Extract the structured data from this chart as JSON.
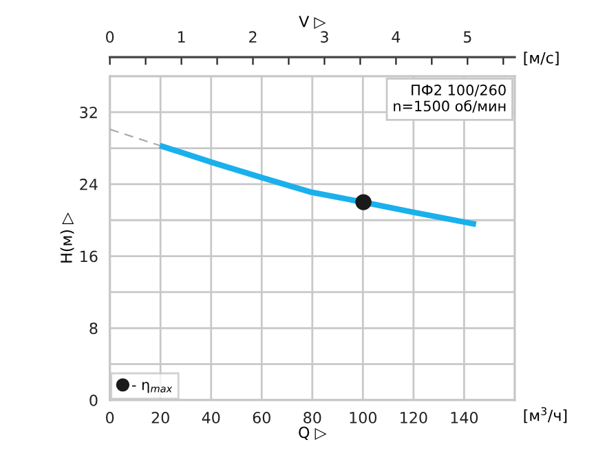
{
  "chart_data": {
    "type": "line",
    "xlabel": "Q ▷",
    "ylabel": "H(м) ▷",
    "x2label": "V ▷",
    "annotations": [
      "ПФ2 100/260\nn=1500 об/мин",
      "[м$^{3}$/ч]",
      "[м/с]"
    ],
    "series": [
      {
        "color": "#aaaaaa",
        "line_style": "dashed",
        "x": [
          0,
          20.8
        ],
        "values": [
          30.1,
          28.2
        ]
      },
      {
        "color": "#1ab0ec",
        "line_style": "solid",
        "x": [
          20.8,
          41.7,
          61.6,
          79.7,
          100.2,
          119.6,
          143.6
        ],
        "values": [
          28.2,
          26.3,
          24.6,
          23.1,
          22.0,
          20.9,
          19.6
        ]
      },
      {
        "type": "scatter",
        "name": "- η$_{max}$",
        "color": "#1a1a1a",
        "marker": "circle",
        "x": [
          100.2
        ],
        "values": [
          22.0
        ]
      }
    ],
    "xlim": [
      0,
      160
    ],
    "xticks": [
      0,
      20,
      40,
      60,
      80,
      100,
      120,
      140
    ],
    "ylim": [
      0,
      36
    ],
    "yticks": [
      0,
      {
        "value": 4,
        "label": null
      },
      8,
      {
        "value": 12,
        "label": null
      },
      16,
      {
        "value": 20,
        "label": null
      },
      24,
      {
        "value": 28,
        "label": null
      },
      32
    ],
    "x2lim": [
      0,
      5.66
    ],
    "x2ticks": [
      0,
      {
        "value": 0.5,
        "label": null
      },
      1,
      {
        "value": 1.5,
        "label": null
      },
      2,
      {
        "value": 2.5,
        "label": null
      },
      3,
      {
        "value": 3.5,
        "label": null
      },
      4,
      {
        "value": 4.5,
        "label": null
      },
      5,
      {
        "value": 5.5,
        "label": null
      }
    ],
    "grid": true,
    "legend": "bottom left"
  }
}
